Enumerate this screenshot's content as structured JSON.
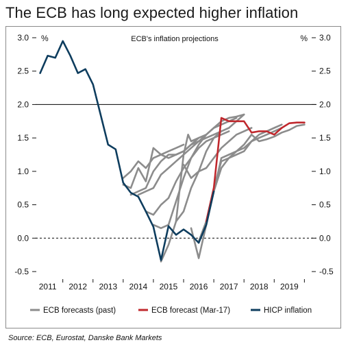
{
  "title": "The ECB has long expected higher inflation",
  "source": "Source: ECB, Eurostat, Danske Bank Markets",
  "chart_data": {
    "type": "line",
    "subtitle": "ECB's inflation projections",
    "y_unit_left": "%",
    "y_unit_right": "%",
    "ylim": [
      -0.5,
      3.0
    ],
    "yticks": [
      -0.5,
      0.0,
      0.5,
      1.0,
      1.5,
      2.0,
      2.5,
      3.0
    ],
    "ytick_labels": [
      "-0.5",
      "0.0",
      "0.5",
      "1.0",
      "1.5",
      "2.0",
      "2.5",
      "3.0"
    ],
    "xlim": [
      2010.6,
      2019.9
    ],
    "xticks": [
      2011,
      2012,
      2013,
      2014,
      2015,
      2016,
      2017,
      2018,
      2019
    ],
    "xtick_labels": [
      "2011",
      "2012",
      "2013",
      "2014",
      "2015",
      "2016",
      "2017",
      "2018",
      "2019"
    ],
    "reference_lines": [
      {
        "y": 2.0,
        "style": "solid",
        "color": "#000000"
      },
      {
        "y": 0.0,
        "style": "dashed",
        "color": "#000000"
      }
    ],
    "legend": {
      "position": "bottom",
      "entries": [
        {
          "label": "ECB forecasts (past)",
          "color": "#8c8c8c"
        },
        {
          "label": "ECB forecast (Mar-17)",
          "color": "#c0282d"
        },
        {
          "label": "HICP inflation",
          "color": "#0e3d5e"
        }
      ]
    },
    "series": [
      {
        "group": "ECB forecasts (past)",
        "color": "#8c8c8c",
        "points": [
          [
            2013.5,
            0.8
          ],
          [
            2013.75,
            0.75
          ],
          [
            2014.0,
            1.05
          ],
          [
            2014.25,
            0.85
          ],
          [
            2014.5,
            1.35
          ],
          [
            2014.75,
            1.25
          ],
          [
            2015.0,
            1.3
          ],
          [
            2015.25,
            1.35
          ],
          [
            2015.5,
            1.4
          ]
        ]
      },
      {
        "group": "ECB forecasts (past)",
        "color": "#8c8c8c",
        "points": [
          [
            2013.5,
            0.9
          ],
          [
            2013.75,
            1.0
          ],
          [
            2014.0,
            1.15
          ],
          [
            2014.25,
            1.05
          ],
          [
            2014.5,
            1.2
          ],
          [
            2014.75,
            1.25
          ],
          [
            2015.0,
            1.2
          ],
          [
            2015.25,
            1.25
          ],
          [
            2015.5,
            1.3
          ],
          [
            2015.75,
            1.4
          ],
          [
            2016.0,
            1.5
          ]
        ]
      },
      {
        "group": "ECB forecasts (past)",
        "color": "#8c8c8c",
        "points": [
          [
            2013.75,
            0.65
          ],
          [
            2014.0,
            0.7
          ],
          [
            2014.25,
            0.75
          ],
          [
            2014.5,
            1.0
          ],
          [
            2014.75,
            1.15
          ],
          [
            2015.0,
            1.25
          ],
          [
            2015.25,
            1.25
          ],
          [
            2015.5,
            1.3
          ],
          [
            2015.75,
            1.4
          ],
          [
            2016.0,
            1.45
          ],
          [
            2016.25,
            1.55
          ]
        ]
      },
      {
        "group": "ECB forecasts (past)",
        "color": "#8c8c8c",
        "points": [
          [
            2014.0,
            0.65
          ],
          [
            2014.25,
            0.7
          ],
          [
            2014.5,
            0.75
          ],
          [
            2014.75,
            0.95
          ],
          [
            2015.0,
            1.05
          ],
          [
            2015.25,
            1.15
          ],
          [
            2015.5,
            1.25
          ],
          [
            2015.75,
            1.35
          ],
          [
            2016.0,
            1.45
          ],
          [
            2016.25,
            1.5
          ],
          [
            2016.5,
            1.55
          ],
          [
            2016.75,
            1.6
          ]
        ]
      },
      {
        "group": "ECB forecasts (past)",
        "color": "#8c8c8c",
        "points": [
          [
            2014.25,
            0.4
          ],
          [
            2014.5,
            0.35
          ],
          [
            2014.75,
            0.5
          ],
          [
            2015.0,
            0.6
          ],
          [
            2015.25,
            0.85
          ],
          [
            2015.5,
            1.05
          ],
          [
            2015.75,
            1.2
          ],
          [
            2016.0,
            1.35
          ],
          [
            2016.25,
            1.45
          ],
          [
            2016.5,
            1.5
          ],
          [
            2016.75,
            1.55
          ],
          [
            2017.0,
            1.6
          ]
        ]
      },
      {
        "group": "ECB forecasts (past)",
        "color": "#8c8c8c",
        "points": [
          [
            2014.5,
            0.2
          ],
          [
            2014.75,
            0.15
          ],
          [
            2015.0,
            0.2
          ],
          [
            2015.25,
            0.55
          ],
          [
            2015.5,
            0.9
          ],
          [
            2015.75,
            1.2
          ],
          [
            2016.0,
            1.4
          ],
          [
            2016.25,
            1.55
          ],
          [
            2016.5,
            1.65
          ],
          [
            2016.75,
            1.7
          ],
          [
            2017.0,
            1.75
          ],
          [
            2017.25,
            1.8
          ]
        ]
      },
      {
        "group": "ECB forecasts (past)",
        "color": "#8c8c8c",
        "points": [
          [
            2014.75,
            -0.35
          ],
          [
            2015.0,
            -0.1
          ],
          [
            2015.25,
            0.25
          ],
          [
            2015.5,
            0.4
          ],
          [
            2015.75,
            0.75
          ],
          [
            2016.0,
            1.0
          ],
          [
            2016.25,
            1.3
          ],
          [
            2016.5,
            1.5
          ],
          [
            2016.75,
            1.6
          ],
          [
            2017.0,
            1.65
          ],
          [
            2017.25,
            1.75
          ],
          [
            2017.5,
            1.85
          ]
        ]
      },
      {
        "group": "ECB forecasts (past)",
        "color": "#8c8c8c",
        "points": [
          [
            2015.25,
            0.25
          ],
          [
            2015.5,
            1.25
          ],
          [
            2015.65,
            1.55
          ],
          [
            2015.75,
            1.45
          ],
          [
            2016.0,
            1.5
          ],
          [
            2016.25,
            1.55
          ],
          [
            2016.5,
            1.65
          ],
          [
            2016.75,
            1.75
          ],
          [
            2017.0,
            1.8
          ],
          [
            2017.25,
            1.82
          ],
          [
            2017.5,
            1.85
          ]
        ]
      },
      {
        "group": "ECB forecasts (past)",
        "color": "#8c8c8c",
        "points": [
          [
            2015.5,
            1.1
          ],
          [
            2015.75,
            0.9
          ],
          [
            2016.0,
            1.0
          ],
          [
            2016.25,
            1.05
          ],
          [
            2016.5,
            1.2
          ],
          [
            2016.75,
            1.35
          ],
          [
            2017.0,
            1.45
          ],
          [
            2017.25,
            1.55
          ],
          [
            2017.5,
            1.6
          ],
          [
            2017.75,
            1.65
          ]
        ]
      },
      {
        "group": "ECB forecasts (past)",
        "color": "#8c8c8c",
        "points": [
          [
            2015.75,
            0.15
          ],
          [
            2016.0,
            -0.3
          ],
          [
            2016.25,
            0.2
          ],
          [
            2016.5,
            0.7
          ],
          [
            2016.75,
            1.05
          ],
          [
            2017.0,
            1.2
          ],
          [
            2017.25,
            1.25
          ],
          [
            2017.5,
            1.3
          ],
          [
            2017.75,
            1.45
          ],
          [
            2018.0,
            1.55
          ],
          [
            2018.25,
            1.6
          ],
          [
            2018.5,
            1.65
          ],
          [
            2018.75,
            1.7
          ]
        ]
      },
      {
        "group": "ECB forecasts (past)",
        "color": "#8c8c8c",
        "points": [
          [
            2016.0,
            -0.05
          ],
          [
            2016.25,
            0.25
          ],
          [
            2016.5,
            0.7
          ],
          [
            2016.75,
            1.2
          ],
          [
            2017.0,
            1.25
          ],
          [
            2017.25,
            1.3
          ],
          [
            2017.5,
            1.35
          ],
          [
            2017.75,
            1.45
          ],
          [
            2018.0,
            1.5
          ],
          [
            2018.25,
            1.55
          ],
          [
            2018.5,
            1.6
          ],
          [
            2018.75,
            1.65
          ]
        ]
      },
      {
        "group": "ECB forecasts (past)",
        "color": "#8c8c8c",
        "points": [
          [
            2016.0,
            -0.05
          ],
          [
            2016.25,
            0.25
          ],
          [
            2016.5,
            0.75
          ],
          [
            2016.75,
            1.15
          ],
          [
            2017.0,
            1.2
          ],
          [
            2017.25,
            1.3
          ],
          [
            2017.5,
            1.4
          ],
          [
            2017.75,
            1.55
          ],
          [
            2018.0,
            1.45
          ],
          [
            2018.25,
            1.48
          ],
          [
            2018.5,
            1.52
          ],
          [
            2018.75,
            1.58
          ],
          [
            2019.0,
            1.62
          ],
          [
            2019.25,
            1.68
          ],
          [
            2019.5,
            1.7
          ]
        ]
      },
      {
        "group": "ECB forecast (Mar-17)",
        "color": "#c0282d",
        "points": [
          [
            2016.25,
            0.25
          ],
          [
            2016.5,
            0.75
          ],
          [
            2016.75,
            1.8
          ],
          [
            2017.0,
            1.75
          ],
          [
            2017.25,
            1.75
          ],
          [
            2017.5,
            1.75
          ],
          [
            2017.75,
            1.58
          ],
          [
            2018.0,
            1.6
          ],
          [
            2018.25,
            1.6
          ],
          [
            2018.5,
            1.55
          ],
          [
            2018.75,
            1.65
          ],
          [
            2019.0,
            1.72
          ],
          [
            2019.25,
            1.73
          ],
          [
            2019.5,
            1.73
          ]
        ]
      },
      {
        "group": "HICP inflation",
        "color": "#0e3d5e",
        "points": [
          [
            2010.75,
            2.47
          ],
          [
            2011.0,
            2.73
          ],
          [
            2011.25,
            2.7
          ],
          [
            2011.5,
            2.95
          ],
          [
            2011.75,
            2.73
          ],
          [
            2012.0,
            2.47
          ],
          [
            2012.25,
            2.53
          ],
          [
            2012.5,
            2.3
          ],
          [
            2012.75,
            1.85
          ],
          [
            2013.0,
            1.4
          ],
          [
            2013.25,
            1.33
          ],
          [
            2013.5,
            0.83
          ],
          [
            2013.75,
            0.68
          ],
          [
            2014.0,
            0.62
          ],
          [
            2014.25,
            0.4
          ],
          [
            2014.5,
            0.17
          ],
          [
            2014.75,
            -0.33
          ],
          [
            2015.0,
            0.18
          ],
          [
            2015.25,
            0.05
          ],
          [
            2015.5,
            0.13
          ],
          [
            2015.75,
            0.05
          ],
          [
            2016.0,
            -0.07
          ],
          [
            2016.25,
            0.2
          ],
          [
            2016.5,
            0.7
          ]
        ]
      }
    ]
  }
}
